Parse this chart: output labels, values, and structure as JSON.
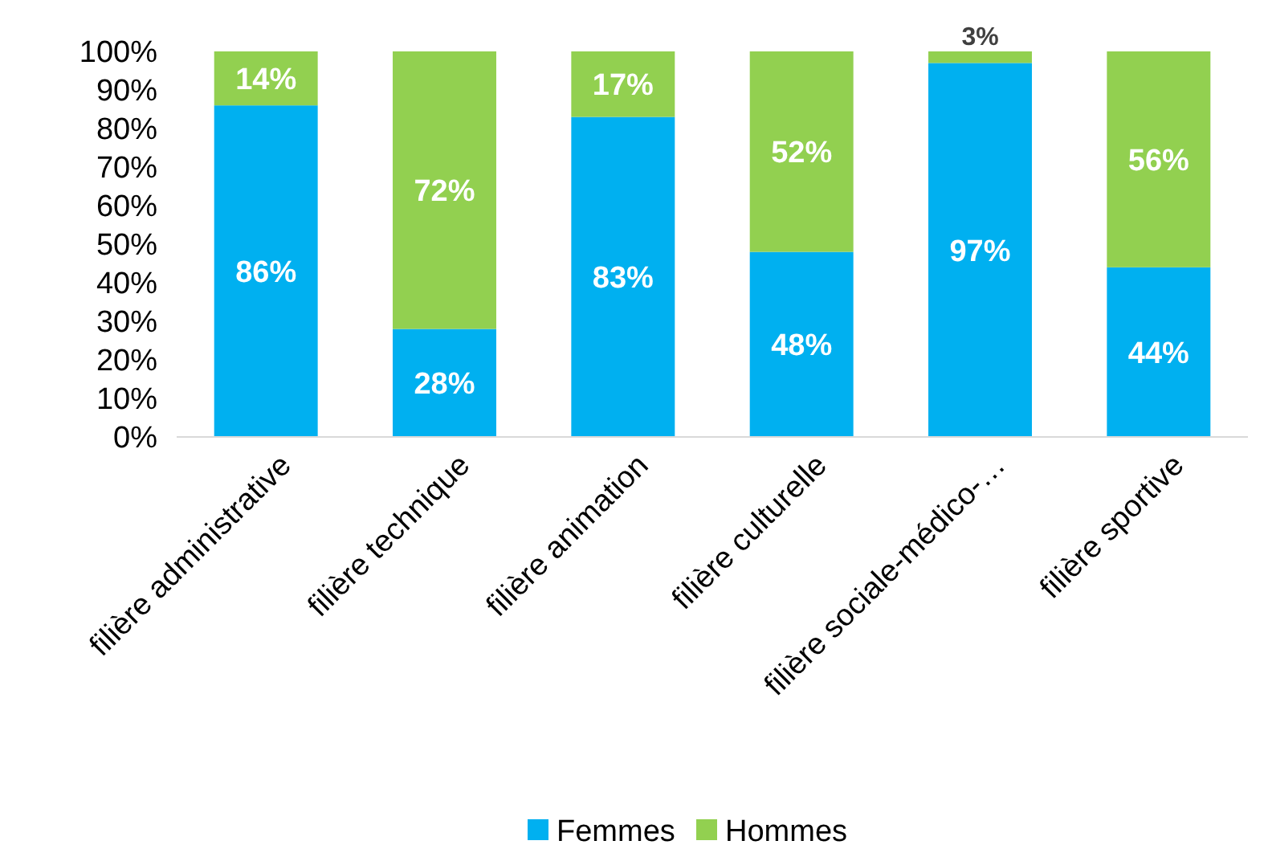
{
  "chart_data": {
    "type": "bar",
    "stacked": true,
    "categories": [
      "filière administrative",
      "filière technique",
      "filière animation",
      "filière culturelle",
      "filière sociale-médico-…",
      "filière sportive"
    ],
    "series": [
      {
        "name": "Femmes",
        "color": "#00b0f0",
        "values": [
          86,
          28,
          83,
          48,
          97,
          44
        ],
        "value_labels": [
          "86%",
          "28%",
          "83%",
          "48%",
          "97%",
          "44%"
        ]
      },
      {
        "name": "Hommes",
        "color": "#92d050",
        "values": [
          14,
          72,
          17,
          52,
          3,
          56
        ],
        "value_labels": [
          "14%",
          "72%",
          "17%",
          "52%",
          "3%",
          "56%"
        ]
      }
    ],
    "ylim": [
      0,
      100
    ],
    "yticks": [
      {
        "value": 0,
        "label": "0%"
      },
      {
        "value": 10,
        "label": "10%"
      },
      {
        "value": 20,
        "label": "20%"
      },
      {
        "value": 30,
        "label": "30%"
      },
      {
        "value": 40,
        "label": "40%"
      },
      {
        "value": 50,
        "label": "50%"
      },
      {
        "value": 60,
        "label": "60%"
      },
      {
        "value": 70,
        "label": "70%"
      },
      {
        "value": 80,
        "label": "80%"
      },
      {
        "value": 90,
        "label": "90%"
      },
      {
        "value": 100,
        "label": "100%"
      }
    ],
    "grid": false,
    "legend": "bottom"
  }
}
